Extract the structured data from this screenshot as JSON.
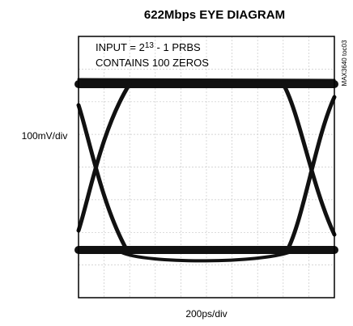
{
  "title": "622Mbps EYE DIAGRAM",
  "annotation": {
    "line1_base": "INPUT = 2",
    "line1_exponent": "13",
    "line1_rest": " - 1 PRBS",
    "line2": "CONTAINS 100 ZEROS"
  },
  "y_label": "100mV/div",
  "x_label": "200ps/div",
  "figure_code": "MAX3640 toc03"
}
